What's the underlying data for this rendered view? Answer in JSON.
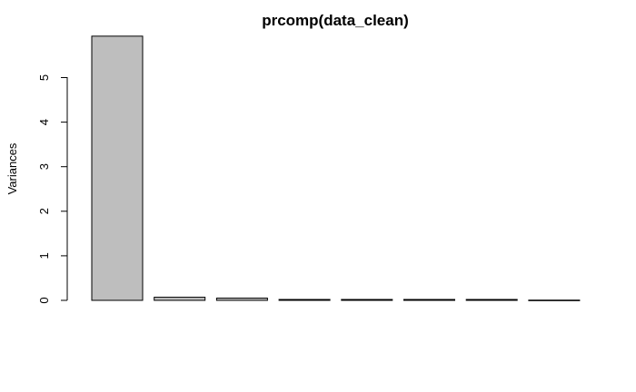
{
  "chart_data": {
    "type": "bar",
    "title": "prcomp(data_clean)",
    "ylabel": "Variances",
    "xlabel": "",
    "categories": [
      "",
      "",
      "",
      "",
      "",
      "",
      "",
      ""
    ],
    "values": [
      5.93,
      0.07,
      0.05,
      0.02,
      0.02,
      0.02,
      0.02,
      0.005
    ],
    "ylim": [
      0,
      6.23
    ],
    "yticks": [
      0,
      1,
      2,
      3,
      4,
      5
    ],
    "grid": false,
    "bar_color": "#bebebe",
    "bar_border_color": "#000000"
  }
}
